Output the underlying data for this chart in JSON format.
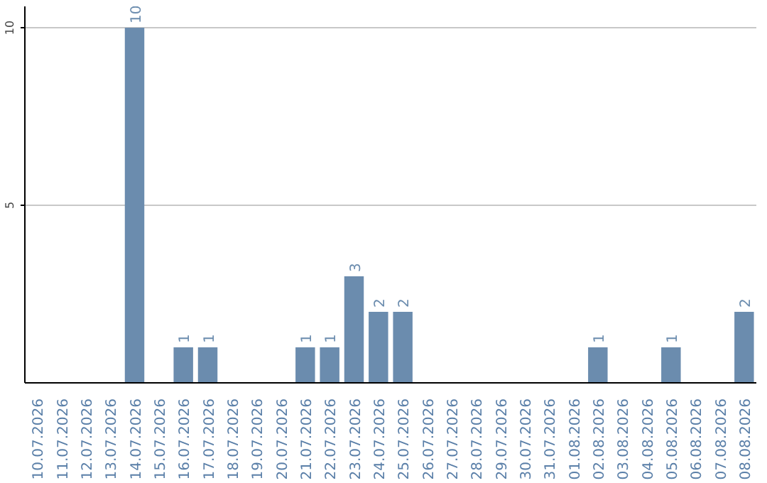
{
  "chart_data": {
    "type": "bar",
    "categories": [
      "10.07.2026",
      "11.07.2026",
      "12.07.2026",
      "13.07.2026",
      "14.07.2026",
      "15.07.2026",
      "16.07.2026",
      "17.07.2026",
      "18.07.2026",
      "19.07.2026",
      "20.07.2026",
      "21.07.2026",
      "22.07.2026",
      "23.07.2026",
      "24.07.2026",
      "25.07.2026",
      "26.07.2026",
      "27.07.2026",
      "28.07.2026",
      "29.07.2026",
      "30.07.2026",
      "31.07.2026",
      "01.08.2026",
      "02.08.2026",
      "03.08.2026",
      "04.08.2026",
      "05.08.2026",
      "06.08.2026",
      "07.08.2026",
      "08.08.2026"
    ],
    "values": [
      0,
      0,
      0,
      0,
      10,
      0,
      1,
      1,
      0,
      0,
      0,
      1,
      1,
      3,
      2,
      2,
      0,
      0,
      0,
      0,
      0,
      0,
      0,
      1,
      0,
      0,
      1,
      0,
      0,
      2
    ],
    "value_labels": [
      null,
      null,
      null,
      null,
      "10",
      null,
      "1",
      "1",
      null,
      null,
      null,
      "1",
      "1",
      "3",
      "2",
      "2",
      null,
      null,
      null,
      null,
      null,
      null,
      null,
      "1",
      null,
      null,
      "1",
      null,
      null,
      "2"
    ],
    "color": "#6b8cae",
    "ylim": [
      0,
      10.6
    ],
    "yticks": [
      5,
      10
    ],
    "grid": "y"
  }
}
